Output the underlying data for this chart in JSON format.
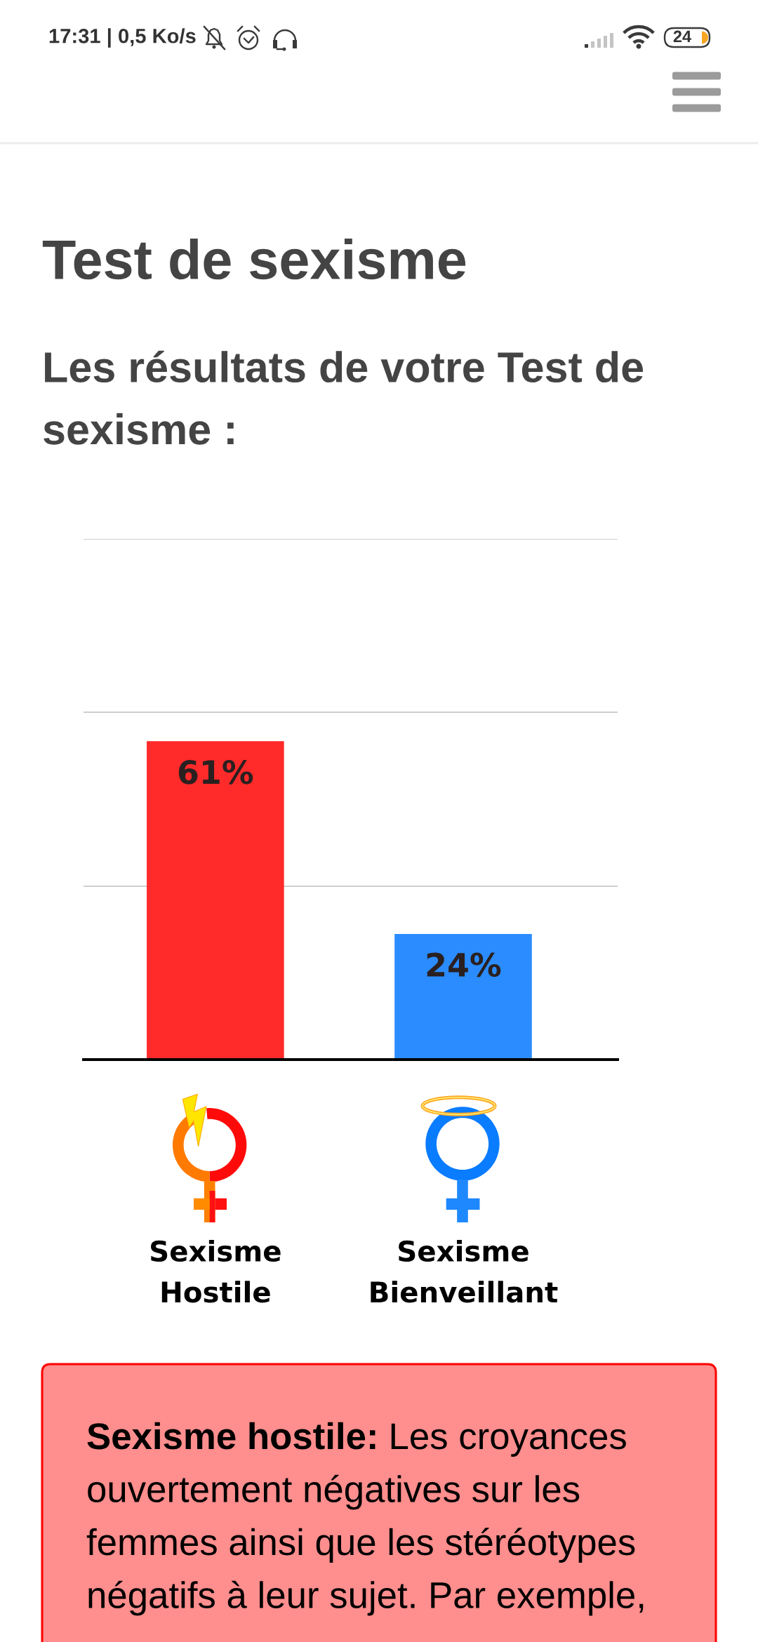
{
  "chart_data": {
    "type": "bar",
    "title": "Test de sexisme",
    "subtitle": "Les résultats de votre Test de sexisme :",
    "categories": [
      "Sexisme Hostile",
      "Sexisme Bienveillant"
    ],
    "values": [
      61,
      24
    ],
    "colors": [
      "#ff2a2a",
      "#2b8cff"
    ],
    "value_labels": [
      "61%",
      "24%"
    ],
    "ylim": [
      0,
      100
    ],
    "yticks": [
      {
        "value": 33.3,
        "label": null
      },
      {
        "value": 66.7,
        "label": null
      },
      {
        "value": 100,
        "label": null
      }
    ],
    "grid": "y",
    "tick_labels": "x",
    "annotations": [
      "17:31 | 0,5 Ko/s",
      "24",
      "Sexisme hostile:",
      "Les croyances ouvertement négatives sur les femmes ainsi que les stéréotypes négatifs à leur sujet. Par exemple,"
    ]
  }
}
